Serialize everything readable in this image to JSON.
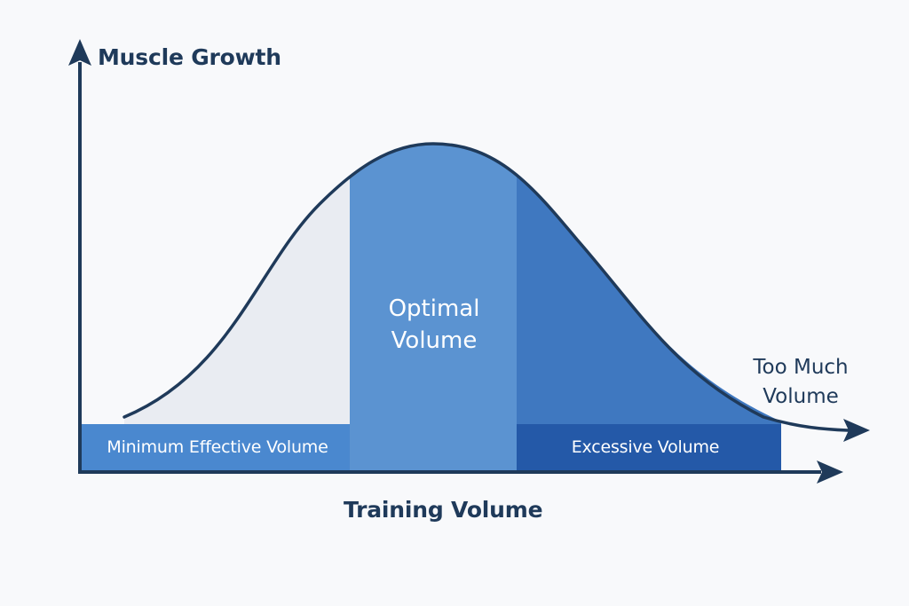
{
  "y_axis": {
    "label": "Muscle Growth"
  },
  "x_axis": {
    "label": "Training Volume"
  },
  "zones": {
    "minimum": {
      "label": "Minimum Effective Volume"
    },
    "optimal": {
      "line1": "Optimal",
      "line2": "Volume"
    },
    "excessive": {
      "label": "Excessive Volume"
    }
  },
  "tail": {
    "line1": "Too Much",
    "line2": "Volume"
  },
  "colors": {
    "axis": "#1f3a5a",
    "minimum_fill": "#e9ecf2",
    "optimal_fill": "#5b93d1",
    "excessive_fill": "#3f78c0",
    "minimum_band": "#4a88cf",
    "excessive_band": "#2459a8",
    "text_dark": "#1f3a5a"
  }
}
